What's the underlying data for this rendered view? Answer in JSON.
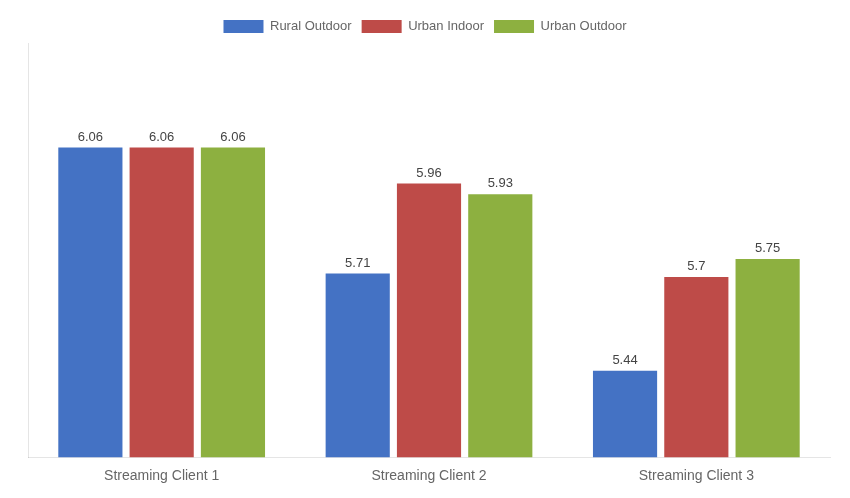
{
  "chart_data": {
    "type": "bar",
    "categories": [
      "Streaming Client 1",
      "Streaming Client 2",
      "Streaming Client 3"
    ],
    "series": [
      {
        "name": "Rural Outdoor",
        "color": "#4472C4",
        "values": [
          6.06,
          5.71,
          5.44
        ]
      },
      {
        "name": "Urban Indoor",
        "color": "#BE4B48",
        "values": [
          6.06,
          5.96,
          5.7
        ]
      },
      {
        "name": "Urban Outdoor",
        "color": "#8DB040",
        "values": [
          6.06,
          5.93,
          5.75
        ]
      }
    ],
    "ylim": [
      5.2,
      6.35
    ],
    "data_labels": true,
    "tick_labels": "x",
    "grid": false,
    "legend": "top"
  }
}
